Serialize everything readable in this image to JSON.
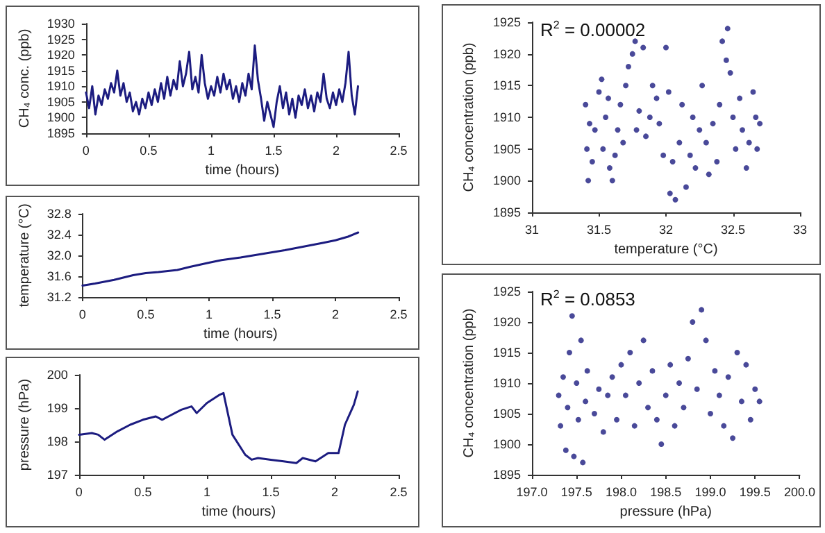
{
  "chart_data": [
    {
      "type": "line",
      "xlabel": "time (hours)",
      "ylabel": "CH₄ conc. (ppb)",
      "xlim": [
        0,
        2.5
      ],
      "xticks": [
        0,
        0.5,
        1,
        1.5,
        2,
        2.5
      ],
      "ylim": [
        1895,
        1930
      ],
      "yticks": [
        1895,
        1900,
        1905,
        1910,
        1915,
        1920,
        1925,
        1930
      ],
      "grid": false,
      "marker": "none",
      "line_style": "solid",
      "series": [
        {
          "color": "#1c1c80",
          "x": [
            0,
            0.025,
            0.05,
            0.075,
            0.1,
            0.125,
            0.15,
            0.175,
            0.2,
            0.225,
            0.25,
            0.275,
            0.3,
            0.325,
            0.35,
            0.375,
            0.4,
            0.425,
            0.45,
            0.475,
            0.5,
            0.525,
            0.55,
            0.575,
            0.6,
            0.625,
            0.65,
            0.675,
            0.7,
            0.725,
            0.75,
            0.775,
            0.8,
            0.825,
            0.85,
            0.875,
            0.9,
            0.925,
            0.95,
            0.975,
            1.0,
            1.025,
            1.05,
            1.075,
            1.1,
            1.125,
            1.15,
            1.175,
            1.2,
            1.225,
            1.25,
            1.275,
            1.3,
            1.325,
            1.35,
            1.375,
            1.4,
            1.425,
            1.45,
            1.475,
            1.5,
            1.525,
            1.55,
            1.575,
            1.6,
            1.625,
            1.65,
            1.675,
            1.7,
            1.725,
            1.75,
            1.775,
            1.8,
            1.825,
            1.85,
            1.875,
            1.9,
            1.925,
            1.95,
            1.975,
            2.0,
            2.025,
            2.05,
            2.075,
            2.1,
            2.125,
            2.15,
            2.175
          ],
          "values": [
            1908,
            1903,
            1910,
            1901,
            1907,
            1904,
            1909,
            1906,
            1911,
            1908,
            1915,
            1907,
            1911,
            1905,
            1908,
            1902,
            1905,
            1901,
            1906,
            1903,
            1908,
            1904,
            1909,
            1905,
            1911,
            1906,
            1913,
            1907,
            1912,
            1909,
            1918,
            1910,
            1914,
            1921,
            1909,
            1913,
            1908,
            1920,
            1911,
            1906,
            1910,
            1907,
            1913,
            1908,
            1914,
            1909,
            1912,
            1906,
            1910,
            1905,
            1911,
            1907,
            1914,
            1909,
            1923,
            1912,
            1906,
            1899,
            1905,
            1901,
            1897,
            1905,
            1910,
            1903,
            1908,
            1901,
            1906,
            1900,
            1907,
            1904,
            1909,
            1903,
            1907,
            1902,
            1908,
            1905,
            1914,
            1906,
            1903,
            1908,
            1904,
            1909,
            1905,
            1911,
            1921,
            1907,
            1901,
            1910
          ]
        }
      ]
    },
    {
      "type": "line",
      "xlabel": "time (hours)",
      "ylabel": "temperature (°C)",
      "xlim": [
        0,
        2.5
      ],
      "xticks": [
        0,
        0.5,
        1,
        1.5,
        2,
        2.5
      ],
      "ylim": [
        31.2,
        32.8
      ],
      "yticks": [
        31.2,
        31.6,
        {
          "value": 32,
          "label": "32.0"
        },
        32.4,
        32.8
      ],
      "grid": false,
      "marker": "none",
      "line_style": "solid",
      "series": [
        {
          "color": "#1c1c80",
          "x": [
            0,
            0.1,
            0.25,
            0.4,
            0.5,
            0.6,
            0.75,
            0.85,
            1.0,
            1.1,
            1.25,
            1.4,
            1.5,
            1.6,
            1.75,
            1.9,
            2.0,
            2.1,
            2.18
          ],
          "values": [
            31.42,
            31.46,
            31.53,
            31.62,
            31.66,
            31.68,
            31.72,
            31.78,
            31.86,
            31.91,
            31.96,
            32.02,
            32.06,
            32.1,
            32.17,
            32.24,
            32.29,
            32.36,
            32.44
          ]
        }
      ]
    },
    {
      "type": "line",
      "xlabel": "time (hours)",
      "ylabel": "pressure (hPa)",
      "xlim": [
        0,
        2.5
      ],
      "xticks": [
        0,
        0.5,
        1,
        1.5,
        2,
        2.5
      ],
      "ylim": [
        197,
        200
      ],
      "yticks": [
        197,
        198,
        199,
        200
      ],
      "grid": false,
      "marker": "none",
      "line_style": "solid",
      "series": [
        {
          "color": "#1c1c80",
          "x": [
            0,
            0.1,
            0.15,
            0.2,
            0.3,
            0.4,
            0.5,
            0.6,
            0.65,
            0.7,
            0.8,
            0.88,
            0.92,
            1.0,
            1.1,
            1.13,
            1.2,
            1.3,
            1.35,
            1.4,
            1.5,
            1.6,
            1.7,
            1.75,
            1.85,
            1.95,
            2.03,
            2.08,
            2.15,
            2.18
          ],
          "values": [
            198.2,
            198.25,
            198.2,
            198.05,
            198.3,
            198.5,
            198.65,
            198.75,
            198.65,
            198.75,
            198.95,
            199.05,
            198.85,
            199.15,
            199.4,
            199.45,
            198.2,
            197.6,
            197.45,
            197.5,
            197.45,
            197.4,
            197.35,
            197.5,
            197.4,
            197.65,
            197.65,
            198.5,
            199.1,
            199.5
          ]
        }
      ]
    },
    {
      "type": "scatter",
      "xlabel": "temperature (°C)",
      "ylabel": "CH₄ concentration (ppb)",
      "annotations": [
        "R$^{2}$ = 0.00002"
      ],
      "xlim": [
        31,
        33
      ],
      "xticks": [
        31,
        31.5,
        32,
        32.5,
        33
      ],
      "ylim": [
        1895,
        1925
      ],
      "yticks": [
        1895,
        1900,
        1905,
        1910,
        1915,
        1920,
        1925
      ],
      "grid": false,
      "marker": "circle",
      "series": [
        {
          "color": "#1c1c80",
          "x": [
            31.4,
            31.41,
            31.42,
            31.43,
            31.45,
            31.47,
            31.5,
            31.52,
            31.53,
            31.55,
            31.57,
            31.58,
            31.6,
            31.62,
            31.64,
            31.66,
            31.68,
            31.7,
            31.72,
            31.75,
            31.77,
            31.78,
            31.8,
            31.83,
            31.85,
            31.88,
            31.9,
            31.93,
            31.95,
            31.98,
            32.0,
            32.02,
            32.03,
            32.05,
            32.07,
            32.1,
            32.12,
            32.15,
            32.18,
            32.2,
            32.22,
            32.25,
            32.27,
            32.3,
            32.32,
            32.35,
            32.38,
            32.4,
            32.42,
            32.45,
            32.46,
            32.48,
            32.5,
            32.52,
            32.55,
            32.57,
            32.6,
            32.62,
            32.65,
            32.67,
            32.68,
            32.7
          ],
          "values": [
            1912,
            1905,
            1900,
            1909,
            1903,
            1908,
            1914,
            1916,
            1905,
            1910,
            1913,
            1902,
            1900,
            1904,
            1908,
            1912,
            1906,
            1915,
            1918,
            1920,
            1922,
            1908,
            1911,
            1921,
            1907,
            1910,
            1915,
            1913,
            1909,
            1904,
            1921,
            1914,
            1898,
            1903,
            1897,
            1906,
            1912,
            1899,
            1904,
            1910,
            1902,
            1908,
            1915,
            1906,
            1901,
            1909,
            1903,
            1912,
            1922,
            1919,
            1924,
            1917,
            1910,
            1905,
            1913,
            1908,
            1902,
            1906,
            1914,
            1910,
            1905,
            1909
          ]
        }
      ]
    },
    {
      "type": "scatter",
      "xlabel": "pressure (hPa)",
      "ylabel": "CH₄ concentration (ppb)",
      "annotations": [
        "R$^{2}$ = 0.0853"
      ],
      "xlim": [
        197,
        200
      ],
      "xticks": [
        {
          "value": 197,
          "label": "197.0"
        },
        197.5,
        {
          "value": 198,
          "label": "198.0"
        },
        198.5,
        {
          "value": 199,
          "label": "199.0"
        },
        199.5,
        {
          "value": 200,
          "label": "200.0"
        }
      ],
      "ylim": [
        1895,
        1925
      ],
      "yticks": [
        1895,
        1900,
        1905,
        1910,
        1915,
        1920,
        1925
      ],
      "grid": false,
      "marker": "circle",
      "series": [
        {
          "color": "#1c1c80",
          "x": [
            197.3,
            197.32,
            197.35,
            197.38,
            197.4,
            197.42,
            197.45,
            197.47,
            197.5,
            197.52,
            197.55,
            197.57,
            197.6,
            197.62,
            197.7,
            197.75,
            197.8,
            197.85,
            197.9,
            197.95,
            198.0,
            198.05,
            198.1,
            198.15,
            198.2,
            198.25,
            198.3,
            198.35,
            198.4,
            198.45,
            198.5,
            198.55,
            198.6,
            198.65,
            198.7,
            198.75,
            198.8,
            198.85,
            198.9,
            198.95,
            199.0,
            199.05,
            199.1,
            199.15,
            199.2,
            199.25,
            199.3,
            199.35,
            199.4,
            199.45,
            199.5,
            199.55
          ],
          "values": [
            1908,
            1903,
            1911,
            1899,
            1906,
            1915,
            1921,
            1898,
            1910,
            1904,
            1917,
            1897,
            1907,
            1912,
            1905,
            1909,
            1902,
            1908,
            1911,
            1904,
            1913,
            1908,
            1915,
            1903,
            1910,
            1917,
            1906,
            1912,
            1904,
            1900,
            1908,
            1913,
            1903,
            1910,
            1906,
            1914,
            1920,
            1909,
            1922,
            1917,
            1905,
            1912,
            1908,
            1903,
            1911,
            1901,
            1915,
            1907,
            1913,
            1904,
            1909,
            1907
          ]
        }
      ]
    }
  ]
}
